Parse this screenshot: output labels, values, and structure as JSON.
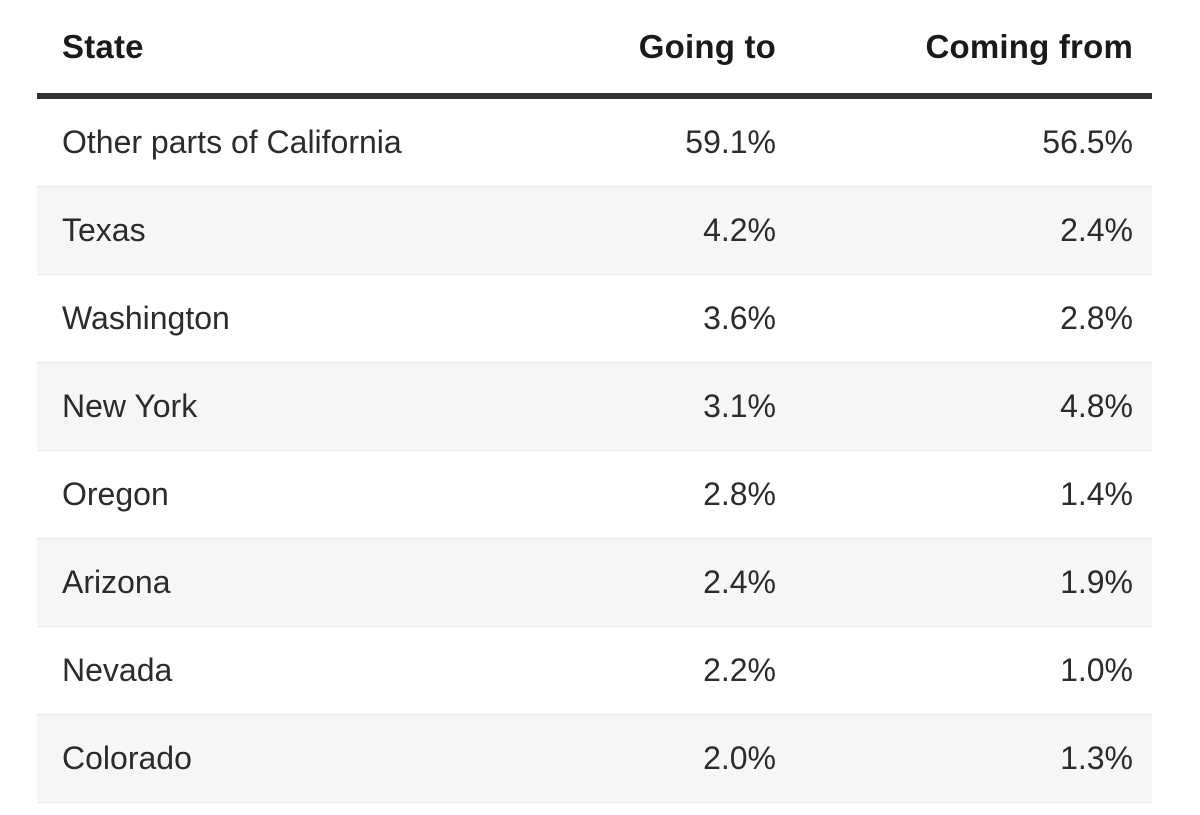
{
  "table": {
    "columns": [
      {
        "label": "State",
        "align": "left"
      },
      {
        "label": "Going to",
        "align": "right"
      },
      {
        "label": "Coming from",
        "align": "right"
      }
    ],
    "rows": [
      {
        "cells": [
          "Other parts of California",
          "59.1%",
          "56.5%"
        ]
      },
      {
        "cells": [
          "Texas",
          "4.2%",
          "2.4%"
        ]
      },
      {
        "cells": [
          "Washington",
          "3.6%",
          "2.8%"
        ]
      },
      {
        "cells": [
          "New York",
          "3.1%",
          "4.8%"
        ]
      },
      {
        "cells": [
          "Oregon",
          "2.8%",
          "1.4%"
        ]
      },
      {
        "cells": [
          "Arizona",
          "2.4%",
          "1.9%"
        ]
      },
      {
        "cells": [
          "Nevada",
          "2.2%",
          "1.0%"
        ]
      },
      {
        "cells": [
          "Colorado",
          "2.0%",
          "1.3%"
        ]
      }
    ],
    "colors": {
      "header_text": "#1a1a1a",
      "body_text": "#2b2b2b",
      "header_rule": "#313131",
      "stripe": "#f6f6f6",
      "row_border": "#eaeaea",
      "background": "#ffffff"
    }
  },
  "chart_data": {
    "type": "table",
    "columns": [
      "State",
      "Going to",
      "Coming from"
    ],
    "units": "%",
    "rows": [
      [
        "Other parts of California",
        59.1,
        56.5
      ],
      [
        "Texas",
        4.2,
        2.4
      ],
      [
        "Washington",
        3.6,
        2.8
      ],
      [
        "New York",
        3.1,
        4.8
      ],
      [
        "Oregon",
        2.8,
        1.4
      ],
      [
        "Arizona",
        2.4,
        1.9
      ],
      [
        "Nevada",
        2.2,
        1.0
      ],
      [
        "Colorado",
        2.0,
        1.3
      ]
    ]
  }
}
